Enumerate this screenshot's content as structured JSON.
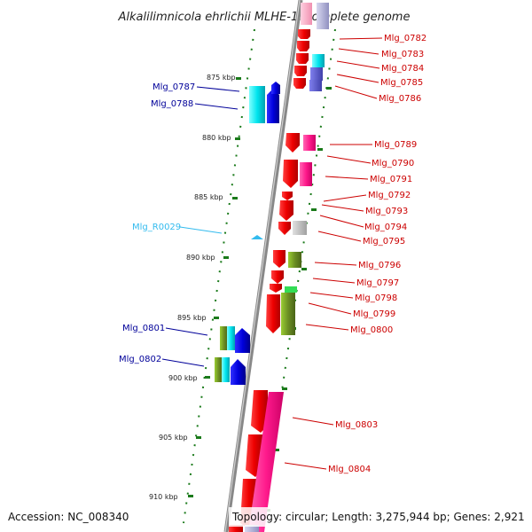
{
  "title": "Alkalilimnicola ehrlichii MLHE-1, complete genome",
  "accession": "Accession: NC_008340",
  "topology": "Topology: circular; Length: 3,275,944 bp; Genes: 2,921",
  "colors": {
    "red": "#ee0000",
    "pink": "#ff1a8c",
    "cyan": "#00e5ee",
    "blue": "#0000dd",
    "olive": "#6b8e23",
    "grey": "#bdbdbd",
    "green_dots": "#1a7a1a",
    "label_red": "#cc0000",
    "label_blue": "#000099",
    "label_cyan": "#33bbee"
  },
  "kbp_labels": [
    "875 kbp",
    "880 kbp",
    "885 kbp",
    "890 kbp",
    "895 kbp",
    "900 kbp",
    "905 kbp",
    "910 kbp"
  ],
  "left_labels": [
    {
      "text": "Mlg_0787",
      "color": "blue"
    },
    {
      "text": "Mlg_0788",
      "color": "blue"
    },
    {
      "text": "Mlg_R0029",
      "color": "cyan"
    },
    {
      "text": "Mlg_0801",
      "color": "blue"
    },
    {
      "text": "Mlg_0802",
      "color": "blue"
    }
  ],
  "right_labels": [
    "Mlg_0782",
    "Mlg_0783",
    "Mlg_0784",
    "Mlg_0785",
    "Mlg_0786",
    "Mlg_0789",
    "Mlg_0790",
    "Mlg_0791",
    "Mlg_0792",
    "Mlg_0793",
    "Mlg_0794",
    "Mlg_0795",
    "Mlg_0796",
    "Mlg_0797",
    "Mlg_0798",
    "Mlg_0799",
    "Mlg_0800",
    "Mlg_0803",
    "Mlg_0804"
  ]
}
